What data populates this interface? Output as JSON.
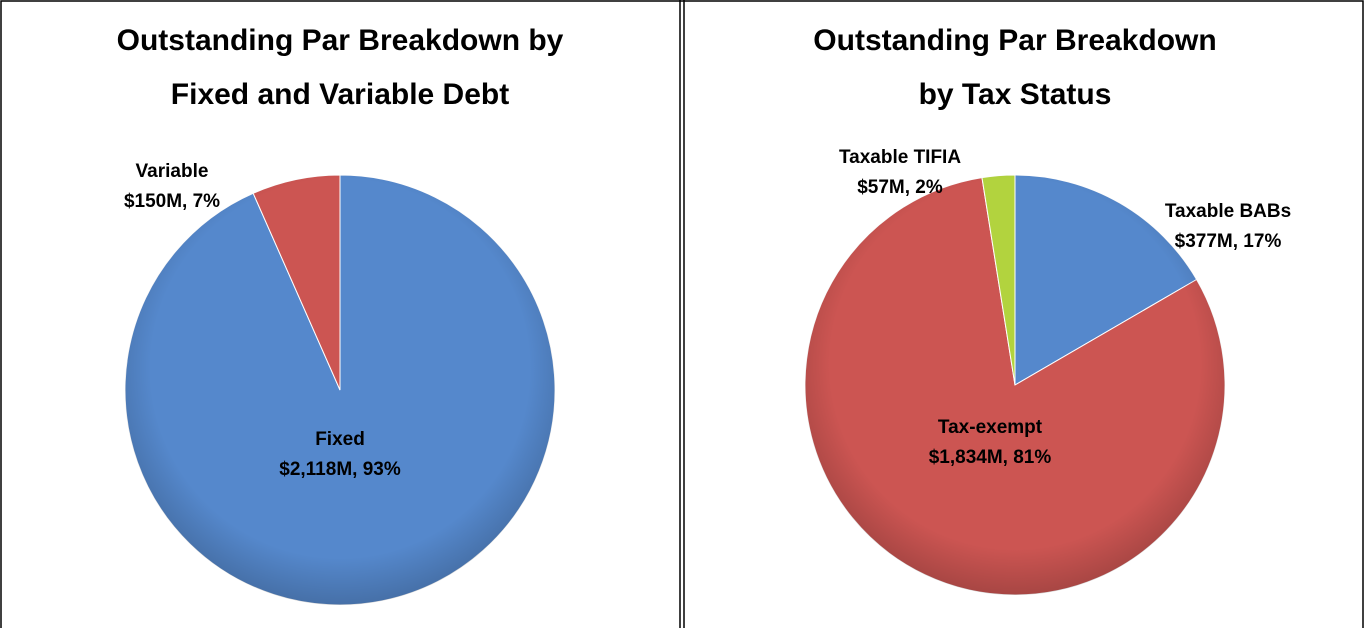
{
  "chart_data": [
    {
      "type": "pie",
      "title": [
        "Outstanding Par Breakdown by",
        "Fixed and Variable Debt"
      ],
      "categories": [
        "Fixed",
        "Variable"
      ],
      "values": [
        2118,
        150
      ],
      "value_labels": [
        "$2,118M, 93%",
        "$150M, 7%"
      ],
      "colors": [
        "#5588cc",
        "#cc5552"
      ]
    },
    {
      "type": "pie",
      "title": [
        "Outstanding Par Breakdown",
        "by Tax Status"
      ],
      "categories": [
        "Taxable BABs",
        "Tax-exempt",
        "Taxable TIFIA"
      ],
      "values": [
        377,
        1834,
        57
      ],
      "value_labels": [
        "$377M, 17%",
        "$1,834M, 81%",
        "$57M, 2%"
      ],
      "colors": [
        "#5588cc",
        "#cc5552",
        "#b2d33e"
      ]
    }
  ]
}
